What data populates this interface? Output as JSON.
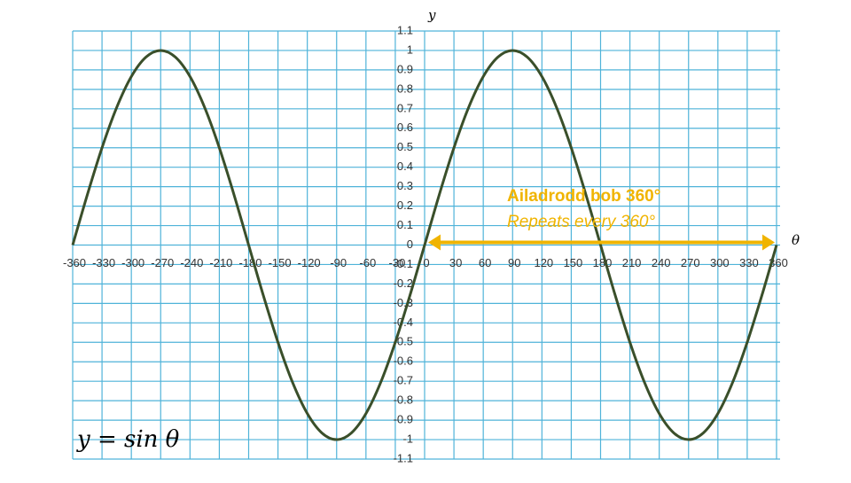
{
  "chart_data": {
    "type": "line",
    "x_label": "θ",
    "y_label": "y",
    "formula": "y = sin θ",
    "annotations": [
      "Ailadrodd bob 360°",
      "Repeats every 360°"
    ],
    "arrow": {
      "x": [
        0,
        360
      ],
      "y": 0,
      "color": "#f0b400"
    },
    "x": [
      -360,
      -345,
      -330,
      -315,
      -300,
      -285,
      -270,
      -255,
      -240,
      -225,
      -210,
      -195,
      -180,
      -165,
      -150,
      -135,
      -120,
      -105,
      -90,
      -75,
      -60,
      -45,
      -30,
      -15,
      0,
      15,
      30,
      45,
      60,
      75,
      90,
      105,
      120,
      135,
      150,
      165,
      180,
      195,
      210,
      225,
      240,
      255,
      270,
      285,
      300,
      315,
      330,
      345,
      360
    ],
    "series": [
      {
        "name": "y = sin θ",
        "color": "#3a4f2a",
        "values": [
          0,
          0.259,
          0.5,
          0.707,
          0.866,
          0.966,
          1,
          0.966,
          0.866,
          0.707,
          0.5,
          0.259,
          0,
          -0.259,
          -0.5,
          -0.707,
          -0.866,
          -0.966,
          -1,
          -0.966,
          -0.866,
          -0.707,
          -0.5,
          -0.259,
          0,
          0.259,
          0.5,
          0.707,
          0.866,
          0.966,
          1,
          0.966,
          0.866,
          0.707,
          0.5,
          0.259,
          0,
          -0.259,
          -0.5,
          -0.707,
          -0.866,
          -0.966,
          -1,
          -0.966,
          -0.866,
          -0.707,
          -0.5,
          -0.259,
          0
        ]
      }
    ],
    "xlim": [
      -360,
      360
    ],
    "ylim": [
      -1.1,
      1.1
    ],
    "xticks": [
      -360,
      -330,
      -300,
      -270,
      -240,
      -210,
      -180,
      -150,
      -120,
      -90,
      -60,
      -30,
      0,
      30,
      60,
      90,
      120,
      150,
      180,
      210,
      240,
      270,
      300,
      330,
      360
    ],
    "yticks": [
      1.1,
      1,
      0.9,
      0.8,
      0.7,
      0.6,
      0.5,
      0.4,
      0.3,
      0.2,
      0.1,
      0,
      -0.1,
      -0.2,
      -0.3,
      -0.4,
      -0.5,
      -0.6,
      -0.7,
      -0.8,
      -0.9,
      -1,
      -1.1
    ],
    "grid": true,
    "grid_color": "#4fb3d9"
  }
}
